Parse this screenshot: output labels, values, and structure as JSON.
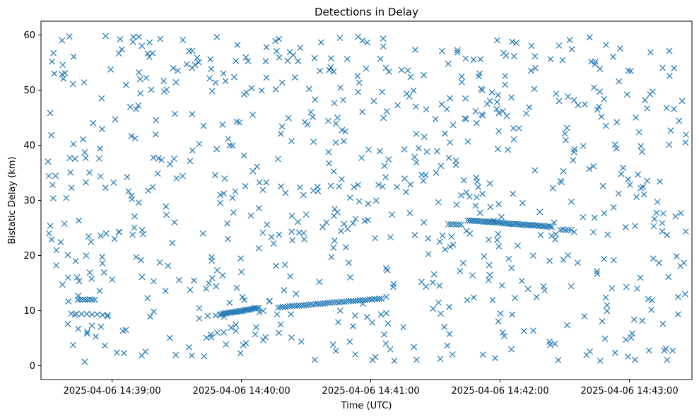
{
  "chart_data": {
    "type": "scatter",
    "title": "Detections in Delay",
    "xlabel": "Time (UTC)",
    "ylabel": "Bistatic Delay (km)",
    "marker": "x",
    "color": "#1f77b4",
    "grid": false,
    "legend": "none",
    "xlim": [
      "2025-04-06 14:38:27",
      "2025-04-06 14:43:29"
    ],
    "ylim": [
      -2.5,
      62.5
    ],
    "x_ticks": [
      "2025-04-06 14:39:00",
      "2025-04-06 14:40:00",
      "2025-04-06 14:41:00",
      "2025-04-06 14:42:00",
      "2025-04-06 14:43:00"
    ],
    "y_ticks": [
      0,
      10,
      20,
      30,
      40,
      50,
      60
    ],
    "tracks": [
      {
        "start": "2025-04-06 14:38:44",
        "end": "2025-04-06 14:38:52",
        "delay_start": 12.0,
        "delay_end": 12.0,
        "count": 8
      },
      {
        "start": "2025-04-06 14:38:41",
        "end": "2025-04-06 14:38:58",
        "delay_start": 9.5,
        "delay_end": 9.2,
        "count": 8
      },
      {
        "start": "2025-04-06 14:39:50",
        "end": "2025-04-06 14:40:08",
        "delay_start": 9.3,
        "delay_end": 10.5,
        "count": 25
      },
      {
        "start": "2025-04-06 14:40:17",
        "end": "2025-04-06 14:41:05",
        "delay_start": 10.6,
        "delay_end": 12.2,
        "count": 45
      },
      {
        "start": "2025-04-06 14:41:36",
        "end": "2025-04-06 14:41:42",
        "delay_start": 25.7,
        "delay_end": 25.6,
        "count": 6
      },
      {
        "start": "2025-04-06 14:41:45",
        "end": "2025-04-06 14:42:24",
        "delay_start": 26.4,
        "delay_end": 25.2,
        "count": 45
      },
      {
        "start": "2025-04-06 14:42:28",
        "end": "2025-04-06 14:42:33",
        "delay_start": 24.7,
        "delay_end": 24.6,
        "count": 5
      }
    ],
    "clutter": {
      "count": 760,
      "time_range": [
        "2025-04-06 14:38:30",
        "2025-04-06 14:43:27"
      ],
      "delay_range": [
        0.7,
        59.8
      ]
    }
  }
}
